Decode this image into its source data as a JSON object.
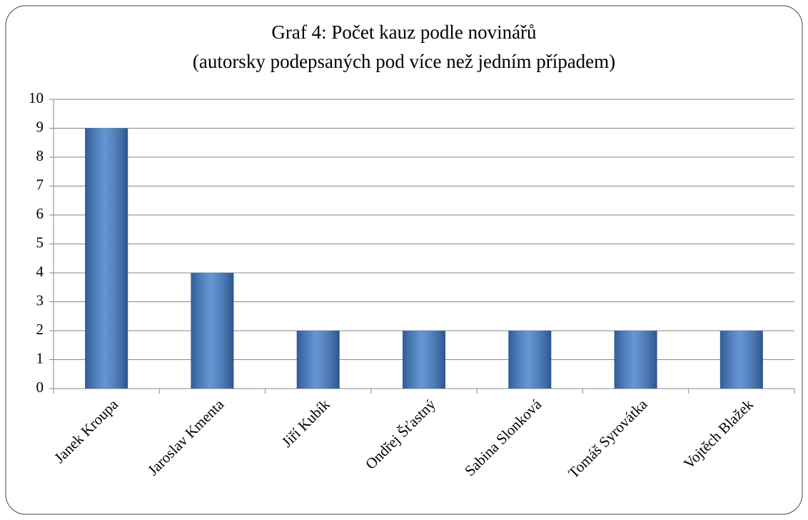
{
  "chart_data": {
    "type": "bar",
    "title": "Graf 4: Počet kauz podle novinářů",
    "subtitle": "(autorsky podepsaných pod více než jedním případem)",
    "categories": [
      "Janek Kroupa",
      "Jaroslav Kmenta",
      "Jiří Kubík",
      "Ondřej Šťastný",
      "Sabina Slonková",
      "Tomáš Syrovátka",
      "Vojtěch Blažek"
    ],
    "values": [
      9,
      4,
      2,
      2,
      2,
      2,
      2
    ],
    "color": "#3f7bc9",
    "ylim": [
      0,
      10
    ],
    "yticks": [
      0,
      1,
      2,
      3,
      4,
      5,
      6,
      7,
      8,
      9,
      10
    ],
    "grid": true
  }
}
